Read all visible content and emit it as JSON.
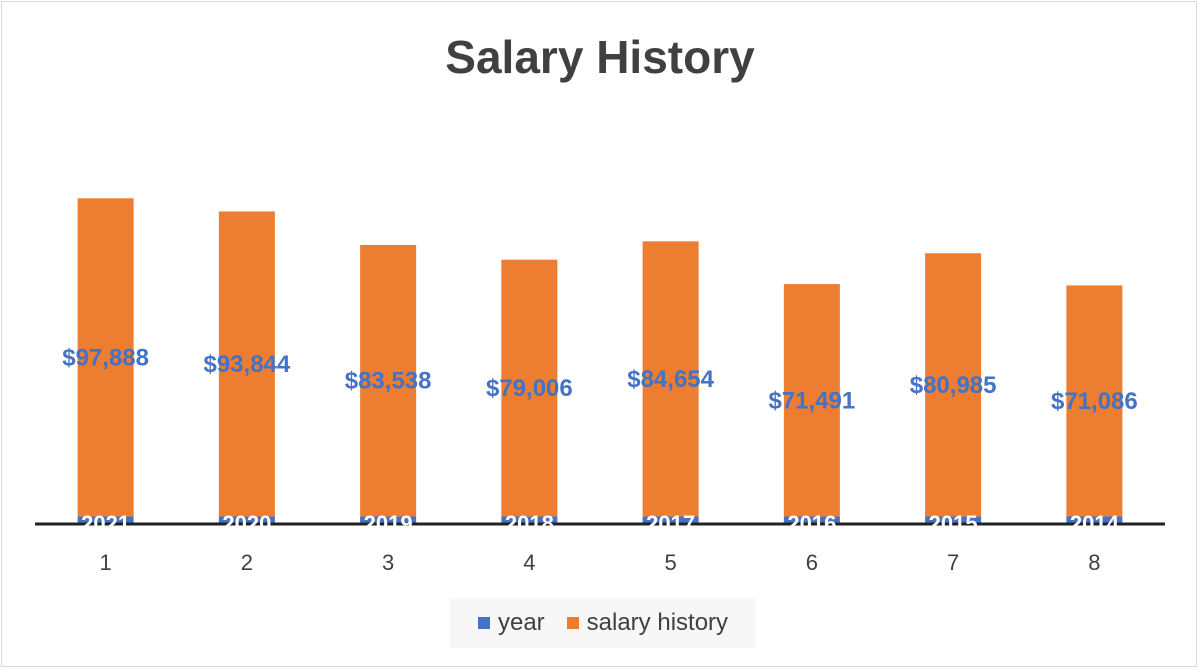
{
  "chart_data": {
    "type": "bar",
    "stacked": true,
    "title": "Salary History",
    "categories": [
      "1",
      "2",
      "3",
      "4",
      "5",
      "6",
      "7",
      "8"
    ],
    "series": [
      {
        "name": "year",
        "values": [
          2021,
          2020,
          2019,
          2018,
          2017,
          2016,
          2015,
          2014
        ],
        "color": "#4472c4",
        "labels": [
          "2021",
          "2020",
          "2019",
          "2018",
          "2017",
          "2016",
          "2015",
          "2014"
        ]
      },
      {
        "name": "salary history",
        "values": [
          97888,
          93844,
          83538,
          79006,
          84654,
          71491,
          80985,
          71086
        ],
        "color": "#ed7d31",
        "labels": [
          "$97,888",
          "$93,844",
          "$83,538",
          "$79,006",
          "$84,654",
          "$71,491",
          "$80,985",
          "$71,086"
        ]
      }
    ],
    "xlabel": "",
    "ylabel": "",
    "ylim": [
      0,
      120000
    ],
    "grid": false,
    "legend": "bottom"
  }
}
